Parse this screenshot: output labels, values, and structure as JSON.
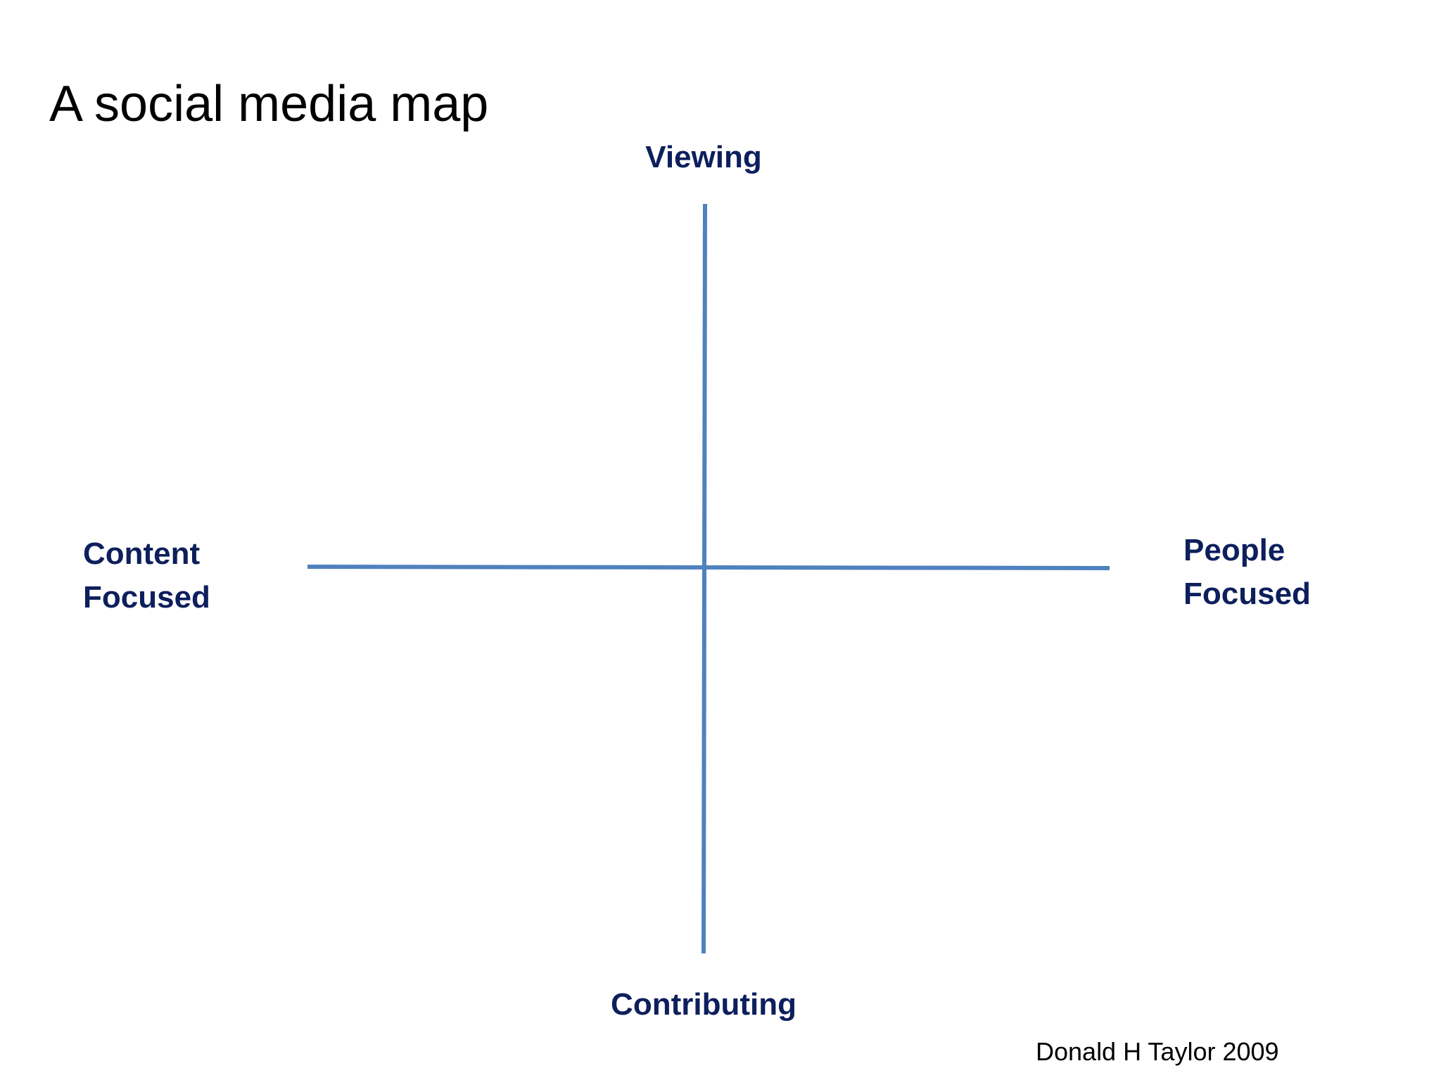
{
  "title": "A social media map",
  "axes": {
    "top": "Viewing",
    "bottom": "Contributing",
    "left": [
      "Content",
      "Focused"
    ],
    "right": [
      "People",
      "Focused"
    ]
  },
  "credit": "Donald H Taylor 2009",
  "colors": {
    "axis_line": "#4F81BD",
    "axis_label": "#0D1F5C",
    "title": "#000000"
  }
}
